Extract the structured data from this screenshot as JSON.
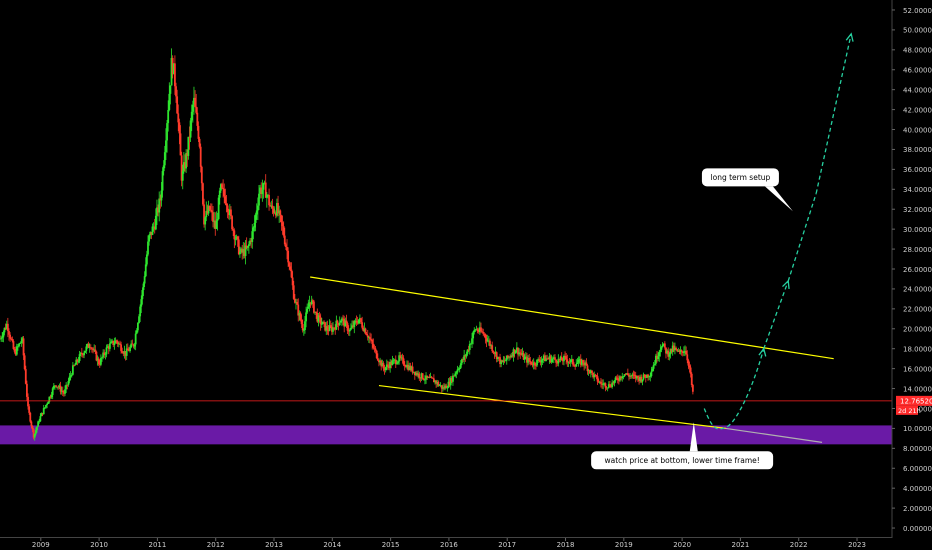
{
  "chart_data": {
    "type": "candlestick",
    "title": "",
    "xlabel": "",
    "ylabel": "",
    "ylim": [
      -1,
      53
    ],
    "xlim": [
      2008.3,
      2023.6
    ],
    "y_ticks": [
      52,
      50,
      48,
      46,
      44,
      42,
      40,
      38,
      36,
      34,
      32,
      30,
      28,
      26,
      24,
      22,
      20,
      18,
      16,
      14,
      12,
      10,
      8,
      6,
      4,
      2,
      0
    ],
    "y_tick_labels": [
      "52.00000",
      "50.00000",
      "48.00000",
      "46.00000",
      "44.00000",
      "42.00000",
      "40.00000",
      "38.00000",
      "36.00000",
      "34.00000",
      "32.00000",
      "30.00000",
      "28.00000",
      "26.00000",
      "24.00000",
      "22.00000",
      "20.00000",
      "18.00000",
      "16.00000",
      "14.00000",
      "12.00000",
      "10.00000",
      "8.00000",
      "6.00000",
      "4.00000",
      "2.00000",
      "0.00000"
    ],
    "x_ticks": [
      2009,
      2010,
      2011,
      2012,
      2013,
      2014,
      2015,
      2016,
      2017,
      2018,
      2019,
      2020,
      2021,
      2022,
      2023
    ],
    "x_tick_labels": [
      "2009",
      "2010",
      "2011",
      "2012",
      "2013",
      "2014",
      "2015",
      "2016",
      "2017",
      "2018",
      "2019",
      "2020",
      "2021",
      "2022",
      "2023"
    ],
    "price_path": [
      [
        2008.3,
        19
      ],
      [
        2008.42,
        20.5
      ],
      [
        2008.55,
        17.5
      ],
      [
        2008.68,
        19
      ],
      [
        2008.78,
        12
      ],
      [
        2008.88,
        9.2
      ],
      [
        2008.98,
        11
      ],
      [
        2009.1,
        12.5
      ],
      [
        2009.25,
        14.5
      ],
      [
        2009.4,
        13.5
      ],
      [
        2009.55,
        16
      ],
      [
        2009.7,
        17.5
      ],
      [
        2009.85,
        18.5
      ],
      [
        2010.0,
        16.5
      ],
      [
        2010.15,
        18.2
      ],
      [
        2010.3,
        18.8
      ],
      [
        2010.45,
        17.5
      ],
      [
        2010.6,
        18.5
      ],
      [
        2010.75,
        24
      ],
      [
        2010.85,
        29
      ],
      [
        2010.95,
        30.5
      ],
      [
        2011.05,
        33
      ],
      [
        2011.15,
        40
      ],
      [
        2011.25,
        47
      ],
      [
        2011.32,
        44
      ],
      [
        2011.42,
        35
      ],
      [
        2011.52,
        38
      ],
      [
        2011.62,
        43
      ],
      [
        2011.72,
        39
      ],
      [
        2011.8,
        31
      ],
      [
        2011.9,
        32
      ],
      [
        2012.0,
        30
      ],
      [
        2012.08,
        34
      ],
      [
        2012.18,
        33
      ],
      [
        2012.3,
        30
      ],
      [
        2012.42,
        27.5
      ],
      [
        2012.55,
        28
      ],
      [
        2012.65,
        30
      ],
      [
        2012.75,
        34
      ],
      [
        2012.85,
        34
      ],
      [
        2012.95,
        32
      ],
      [
        2013.05,
        32
      ],
      [
        2013.15,
        30
      ],
      [
        2013.25,
        27
      ],
      [
        2013.35,
        23
      ],
      [
        2013.5,
        20
      ],
      [
        2013.62,
        23
      ],
      [
        2013.75,
        21
      ],
      [
        2013.9,
        20
      ],
      [
        2014.0,
        20
      ],
      [
        2014.15,
        21
      ],
      [
        2014.3,
        19.8
      ],
      [
        2014.45,
        21
      ],
      [
        2014.6,
        19.5
      ],
      [
        2014.75,
        17.5
      ],
      [
        2014.88,
        16
      ],
      [
        2015.0,
        16.5
      ],
      [
        2015.15,
        17
      ],
      [
        2015.3,
        16.2
      ],
      [
        2015.45,
        15.5
      ],
      [
        2015.6,
        15
      ],
      [
        2015.75,
        14.8
      ],
      [
        2015.9,
        14
      ],
      [
        2016.0,
        14.5
      ],
      [
        2016.15,
        16
      ],
      [
        2016.3,
        17.5
      ],
      [
        2016.45,
        20
      ],
      [
        2016.6,
        19.5
      ],
      [
        2016.75,
        18
      ],
      [
        2016.9,
        16.5
      ],
      [
        2017.0,
        17
      ],
      [
        2017.15,
        18
      ],
      [
        2017.3,
        17
      ],
      [
        2017.45,
        16.5
      ],
      [
        2017.6,
        17
      ],
      [
        2017.75,
        17
      ],
      [
        2017.9,
        16.8
      ],
      [
        2018.0,
        17
      ],
      [
        2018.15,
        16.5
      ],
      [
        2018.3,
        16.7
      ],
      [
        2018.45,
        15.5
      ],
      [
        2018.6,
        14.5
      ],
      [
        2018.75,
        14.3
      ],
      [
        2018.9,
        15
      ],
      [
        2019.0,
        15.5
      ],
      [
        2019.15,
        15.2
      ],
      [
        2019.3,
        15
      ],
      [
        2019.45,
        15.5
      ],
      [
        2019.55,
        17
      ],
      [
        2019.65,
        18.5
      ],
      [
        2019.75,
        17.5
      ],
      [
        2019.85,
        18
      ],
      [
        2019.95,
        17.5
      ],
      [
        2020.05,
        18
      ],
      [
        2020.13,
        16
      ],
      [
        2020.2,
        12.7
      ]
    ],
    "last_price_label": "12.76520",
    "countdown_label": "2d 21h",
    "last_price": 12.7652,
    "trend_lines": [
      {
        "name": "channel-top",
        "color": "#ffff00",
        "from": [
          2013.62,
          25.2
        ],
        "to": [
          2022.6,
          17.0
        ]
      },
      {
        "name": "channel-bottom",
        "color": "#ffff00",
        "from": [
          2014.8,
          14.3
        ],
        "to": [
          2020.75,
          10.0
        ]
      },
      {
        "name": "channel-bottom-extension",
        "color": "#b0b0b0",
        "from": [
          2020.75,
          10.0
        ],
        "to": [
          2022.4,
          8.6
        ]
      },
      {
        "name": "last-price-line",
        "color": "#ff2020",
        "from": [
          2008.3,
          12.7652
        ],
        "to": [
          2023.6,
          12.7652
        ]
      }
    ],
    "support_zone": {
      "color": "#6a1aa6",
      "y_from": 8.4,
      "y_to": 10.3
    },
    "projection": {
      "color": "#26d0a0",
      "curve": [
        [
          2020.38,
          12.0
        ],
        [
          2020.75,
          10.1
        ],
        [
          2021.2,
          13.0
        ],
        [
          2021.4,
          18.0
        ]
      ],
      "arrow_points": [
        [
          2021.4,
          18.0
        ],
        [
          2021.82,
          24.8
        ],
        [
          2022.3,
          33.6
        ],
        [
          2022.9,
          49.6
        ]
      ]
    },
    "annotations": [
      {
        "name": "long-term-setup-callout",
        "text": "long term setup",
        "at": [
          2021.0,
          35.2
        ],
        "pointer_to": [
          2021.9,
          31.8
        ]
      },
      {
        "name": "watch-price-callout",
        "text": "watch price at bottom, lower time frame!",
        "at": [
          2020.0,
          6.8
        ],
        "pointer_to": [
          2020.2,
          10.6
        ]
      }
    ],
    "grid": false,
    "legend": "none",
    "up_color": "#2ee52e",
    "down_color": "#ff3b2b",
    "axis_text_color": "#d0d0d0",
    "last_price_bg": "#ff2a2a"
  }
}
